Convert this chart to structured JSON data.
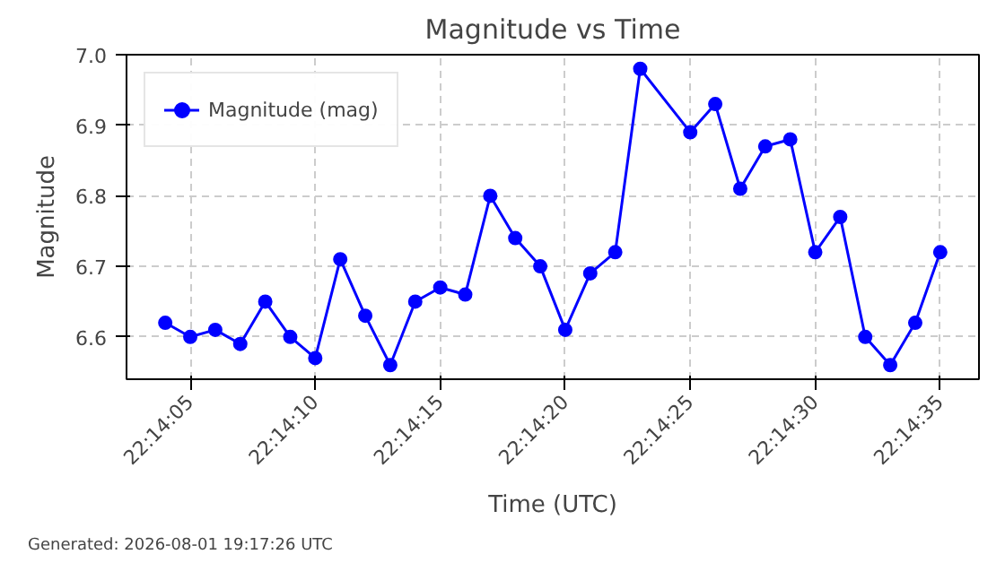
{
  "chart_data": {
    "type": "line",
    "title": "Magnitude vs Time",
    "xlabel": "Time (UTC)",
    "ylabel": "Magnitude",
    "x": [
      22.2344444,
      22.2347222,
      22.235,
      22.2352778,
      22.2355556,
      22.2358333,
      22.2361111,
      22.2363889,
      22.2366667,
      22.2369444,
      22.2372222,
      22.2375,
      22.2377778,
      22.2380556,
      22.2383333,
      22.2386111,
      22.2388889,
      22.2391667,
      22.2394444,
      22.2397222,
      22.2402778,
      22.2405556,
      22.2408333,
      22.2411111,
      22.2413889,
      22.2416667,
      22.2419444,
      22.2422222,
      22.2425,
      22.2427778,
      22.2430556
    ],
    "series": [
      {
        "name": "Magnitude (mag)",
        "color": "#0000ff",
        "values": [
          6.62,
          6.6,
          6.61,
          6.59,
          6.65,
          6.6,
          6.57,
          6.71,
          6.63,
          6.56,
          6.65,
          6.67,
          6.66,
          6.8,
          6.74,
          6.7,
          6.61,
          6.69,
          6.72,
          6.98,
          6.89,
          6.93,
          6.81,
          6.87,
          6.88,
          6.72,
          6.77,
          6.6,
          6.56,
          6.62,
          6.72
        ]
      }
    ],
    "xlim": [
      22.234014,
      22.243486
    ],
    "xticks": [
      {
        "value": 22.2347222,
        "label": "22:14:05"
      },
      {
        "value": 22.2361111,
        "label": "22:14:10"
      },
      {
        "value": 22.2375,
        "label": "22:14:15"
      },
      {
        "value": 22.2388889,
        "label": "22:14:20"
      },
      {
        "value": 22.2402778,
        "label": "22:14:25"
      },
      {
        "value": 22.2416667,
        "label": "22:14:30"
      },
      {
        "value": 22.2430556,
        "label": "22:14:35"
      }
    ],
    "ylim": [
      6.54,
      7.0
    ],
    "yticks": [
      6.6,
      6.7,
      6.8,
      6.9,
      {
        "value": 7.0,
        "label": "7.0"
      }
    ],
    "grid": true,
    "legend": "top left",
    "marker": "circle",
    "line_style": "solid",
    "annotations": [
      "Generated: 2026-08-01 19:17:26 UTC"
    ]
  }
}
